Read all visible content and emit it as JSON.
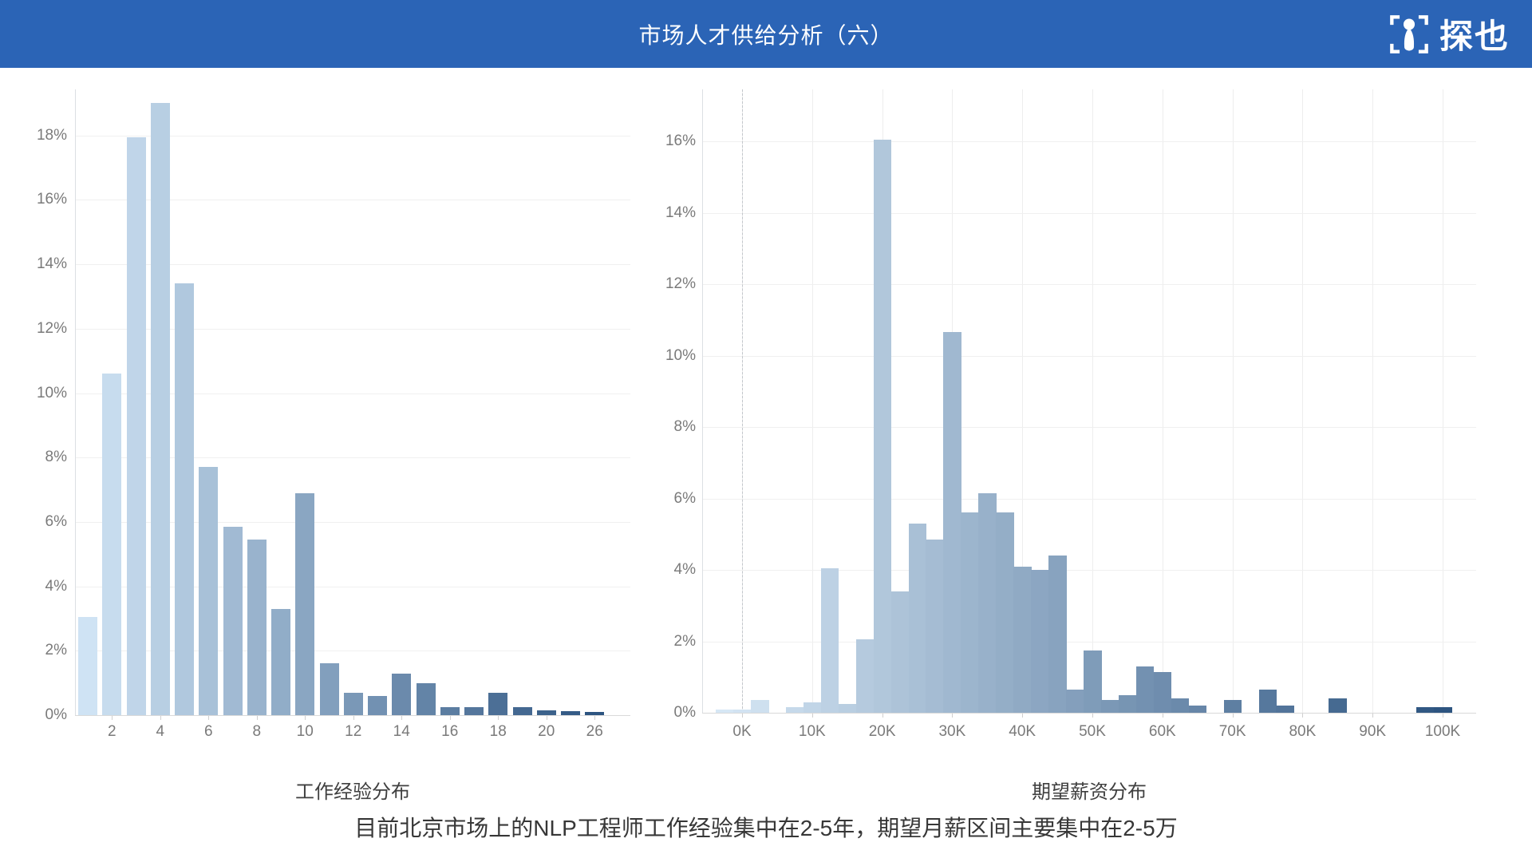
{
  "header": {
    "title": "市场人才供给分析（六）",
    "brand": "探也",
    "bg_color": "#2b64b6"
  },
  "caption": "目前北京市场上的NLP工程师工作经验集中在2-5年，期望月薪区间主要集中在2-5万",
  "chart_data": [
    {
      "type": "bar",
      "title": "工作经验分布",
      "xlabel": "",
      "ylabel": "",
      "categories": [
        "1",
        "2",
        "3",
        "4",
        "5",
        "6",
        "7",
        "8",
        "9",
        "10",
        "11",
        "12",
        "13",
        "14",
        "15",
        "16",
        "17",
        "18",
        "19",
        "20",
        "21",
        "26"
      ],
      "values": [
        3.05,
        10.6,
        17.95,
        19.0,
        13.4,
        7.7,
        5.85,
        5.45,
        3.3,
        6.9,
        1.6,
        0.7,
        0.6,
        1.3,
        1.0,
        0.25,
        0.25,
        0.7,
        0.25,
        0.15,
        0.12,
        0.1
      ],
      "yticks": [
        "0%",
        "2%",
        "4%",
        "6%",
        "8%",
        "10%",
        "12%",
        "14%",
        "16%",
        "18%"
      ],
      "ylim": [
        0,
        19.5
      ],
      "x_tick_labels": [
        "2",
        "4",
        "6",
        "8",
        "10",
        "12",
        "14",
        "16",
        "18",
        "20",
        "26"
      ],
      "grid": "horizontal",
      "legend": "none",
      "color_scale": {
        "start": "#cfe3f4",
        "end": "#2d5480"
      }
    },
    {
      "type": "bar",
      "title": "期望薪资分布",
      "xlabel": "",
      "ylabel": "",
      "bin_width_k": 2.5,
      "x_k": [
        -2.5,
        0,
        2.5,
        5,
        7.5,
        10,
        12.5,
        15,
        17.5,
        20,
        22.5,
        25,
        27.5,
        30,
        32.5,
        35,
        37.5,
        40,
        42.5,
        45,
        47.5,
        50,
        52.5,
        55,
        57.5,
        60,
        62.5,
        65,
        67.5,
        70,
        72.5,
        75,
        77.5,
        80,
        82.5,
        85,
        87.5,
        90,
        92.5,
        95,
        97.5,
        100
      ],
      "values": [
        0.08,
        0.1,
        0.35,
        0,
        0.15,
        0.3,
        4.05,
        0.25,
        2.05,
        16.05,
        3.4,
        5.3,
        4.85,
        10.65,
        5.6,
        6.15,
        5.6,
        4.1,
        4.0,
        4.4,
        0.65,
        1.75,
        0.35,
        0.5,
        1.3,
        1.15,
        0.4,
        0.2,
        0,
        0.35,
        0,
        0.65,
        0.2,
        0,
        0,
        0.4,
        0,
        0,
        0,
        0,
        0.15,
        0.15
      ],
      "yticks": [
        "0%",
        "2%",
        "4%",
        "6%",
        "8%",
        "10%",
        "12%",
        "14%",
        "16%"
      ],
      "ylim": [
        0,
        17
      ],
      "x_tick_labels": [
        "0K",
        "10K",
        "20K",
        "30K",
        "40K",
        "50K",
        "60K",
        "70K",
        "80K",
        "90K",
        "100K"
      ],
      "zero_reference_line_at": "0K",
      "grid": "both",
      "legend": "none",
      "color_scale": {
        "start": "#d6e7f5",
        "end": "#2d5480"
      }
    }
  ]
}
